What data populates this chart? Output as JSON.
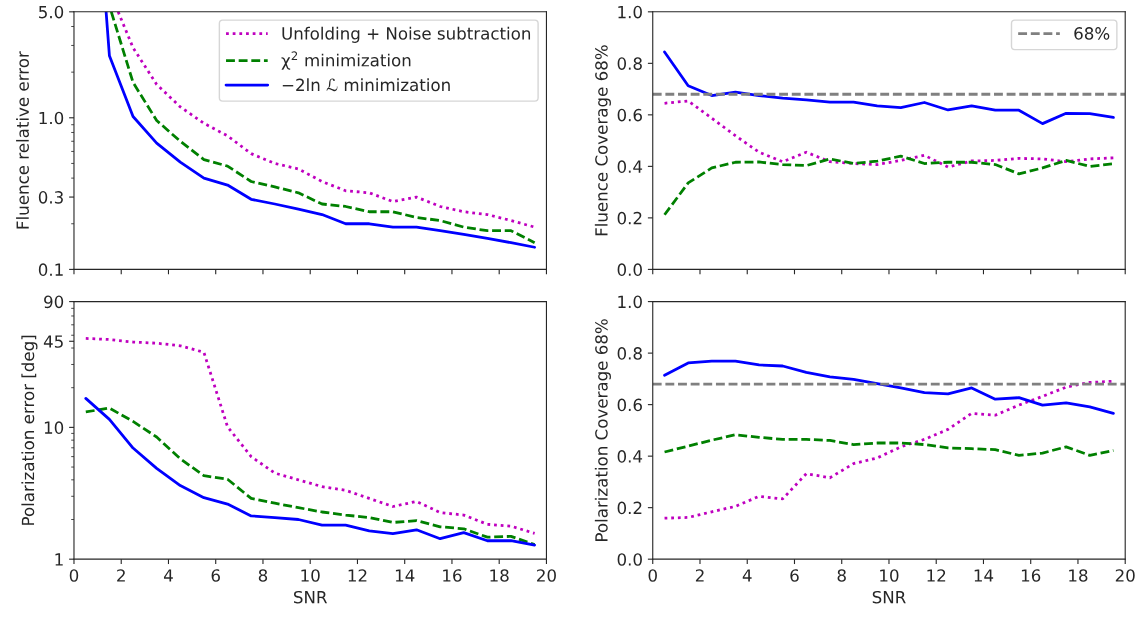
{
  "chart_data": [
    {
      "type": "line",
      "ylabel": "Fluence relative error",
      "log": "y",
      "ylim": [
        0.1,
        5.0
      ],
      "yticks": [
        0.1,
        0.3,
        {
          "value": 1,
          "label": "1.0"
        },
        {
          "value": 5,
          "label": "5.0"
        }
      ],
      "xlim": [
        0,
        20
      ],
      "xticks": [
        0,
        2,
        4,
        6,
        8,
        10,
        12,
        14,
        16,
        18,
        20
      ],
      "tick_labels": "y",
      "grid": false,
      "legend": "top right",
      "series": [
        {
          "name": "Unfolding + Noise subtraction",
          "color": "#bf00bf",
          "line_style": "dotted",
          "x": [
            1.87,
            2.5,
            3.5,
            4.5,
            5.5,
            6.5,
            7.5,
            8.5,
            9.5,
            10.5,
            11.5,
            12.5,
            13.5,
            14.5,
            15.5,
            16.5,
            17.5,
            18.5,
            19.5
          ],
          "values": [
            5.0,
            2.9,
            1.66,
            1.18,
            0.92,
            0.76,
            0.58,
            0.5,
            0.46,
            0.38,
            0.33,
            0.32,
            0.28,
            0.3,
            0.26,
            0.24,
            0.23,
            0.21,
            0.19
          ]
        },
        {
          "name": "χ$^{2}$ minimization",
          "color": "#008000",
          "line_style": "dashed",
          "x": [
            1.58,
            2.5,
            3.5,
            4.5,
            5.5,
            6.5,
            7.5,
            8.5,
            9.5,
            10.5,
            11.5,
            12.5,
            13.5,
            14.5,
            15.5,
            16.5,
            17.5,
            18.5,
            19.5
          ],
          "values": [
            5.0,
            1.71,
            0.96,
            0.7,
            0.53,
            0.48,
            0.38,
            0.35,
            0.32,
            0.27,
            0.26,
            0.24,
            0.24,
            0.22,
            0.21,
            0.19,
            0.18,
            0.18,
            0.15
          ]
        },
        {
          "name": "−2ln ℒ minimization",
          "color": "#0000ff",
          "line_style": "solid",
          "x": [
            1.36,
            1.5,
            2.5,
            3.5,
            4.5,
            5.5,
            6.5,
            7.5,
            8.5,
            9.5,
            10.5,
            11.5,
            12.5,
            13.5,
            14.5,
            15.5,
            16.5,
            17.5,
            18.5,
            19.5
          ],
          "values": [
            5.0,
            2.57,
            1.02,
            0.68,
            0.51,
            0.4,
            0.36,
            0.29,
            0.27,
            0.25,
            0.23,
            0.2,
            0.2,
            0.19,
            0.19,
            0.18,
            0.17,
            0.16,
            0.15,
            0.14
          ]
        }
      ]
    },
    {
      "type": "line",
      "ylabel": "Fluence Coverage 68%",
      "ylim": [
        0.0,
        1.0
      ],
      "yticks": [
        {
          "value": 0,
          "label": "0.0"
        },
        0.2,
        0.4,
        0.6,
        0.8,
        {
          "value": 1,
          "label": "1.0"
        }
      ],
      "xlim": [
        0,
        20
      ],
      "xticks": [
        0,
        2,
        4,
        6,
        8,
        10,
        12,
        14,
        16,
        18,
        20
      ],
      "tick_labels": "y",
      "grid": false,
      "legend": "top right",
      "x": [
        0.5,
        1.5,
        2.5,
        3.5,
        4.5,
        5.5,
        6.5,
        7.5,
        8.5,
        9.5,
        10.5,
        11.5,
        12.5,
        13.5,
        14.5,
        15.5,
        16.5,
        17.5,
        18.5,
        19.5
      ],
      "ref_lines": [
        {
          "axis": "y",
          "value": 0.68,
          "label": "68%",
          "color": "#808080",
          "line_style": "dashed"
        }
      ],
      "series": [
        {
          "color": "#bf00bf",
          "line_style": "dotted",
          "values": [
            0.645,
            0.654,
            0.587,
            0.519,
            0.455,
            0.418,
            0.455,
            0.418,
            0.411,
            0.407,
            0.423,
            0.443,
            0.397,
            0.421,
            0.423,
            0.431,
            0.429,
            0.418,
            0.429,
            0.433
          ]
        },
        {
          "color": "#008000",
          "line_style": "dashed",
          "values": [
            0.212,
            0.336,
            0.394,
            0.416,
            0.417,
            0.407,
            0.403,
            0.429,
            0.411,
            0.42,
            0.44,
            0.411,
            0.416,
            0.416,
            0.407,
            0.371,
            0.394,
            0.423,
            0.4,
            0.41
          ]
        },
        {
          "color": "#0000ff",
          "line_style": "solid",
          "values": [
            0.844,
            0.713,
            0.675,
            0.688,
            0.675,
            0.665,
            0.658,
            0.649,
            0.649,
            0.635,
            0.628,
            0.648,
            0.619,
            0.635,
            0.618,
            0.618,
            0.566,
            0.606,
            0.605,
            0.59
          ]
        }
      ]
    },
    {
      "type": "line",
      "ylabel": "Polarization error [deg]",
      "xlabel": "SNR",
      "log": "y",
      "ylim": [
        1,
        90
      ],
      "yticks": [
        1,
        10,
        45,
        90
      ],
      "xlim": [
        0,
        20
      ],
      "xticks": [
        0,
        2,
        4,
        6,
        8,
        10,
        12,
        14,
        16,
        18,
        20
      ],
      "grid": false,
      "x": [
        0.5,
        1.5,
        2.5,
        3.5,
        4.5,
        5.5,
        6.5,
        7.5,
        8.5,
        9.5,
        10.5,
        11.5,
        12.5,
        13.5,
        14.5,
        15.5,
        16.5,
        17.5,
        18.5,
        19.5
      ],
      "series": [
        {
          "color": "#bf00bf",
          "line_style": "dotted",
          "values": [
            47.3,
            46.4,
            44.4,
            43.5,
            41.6,
            37.1,
            10.1,
            6.0,
            4.5,
            4.0,
            3.55,
            3.33,
            2.89,
            2.51,
            2.74,
            2.26,
            2.16,
            1.84,
            1.78,
            1.57
          ]
        },
        {
          "color": "#008000",
          "line_style": "dashed",
          "values": [
            13.1,
            14.0,
            11.1,
            8.45,
            5.78,
            4.3,
            4.04,
            2.89,
            2.66,
            2.46,
            2.28,
            2.16,
            2.07,
            1.9,
            1.96,
            1.76,
            1.7,
            1.47,
            1.49,
            1.29
          ]
        },
        {
          "color": "#0000ff",
          "line_style": "solid",
          "values": [
            16.6,
            11.5,
            6.97,
            4.89,
            3.62,
            2.93,
            2.62,
            2.13,
            2.07,
            2.0,
            1.81,
            1.81,
            1.64,
            1.56,
            1.67,
            1.43,
            1.59,
            1.38,
            1.38,
            1.28
          ]
        }
      ]
    },
    {
      "type": "line",
      "ylabel": "Polarization Coverage 68%",
      "xlabel": "SNR",
      "ylim": [
        0.0,
        1.0
      ],
      "yticks": [
        {
          "value": 0,
          "label": "0.0"
        },
        0.2,
        0.4,
        0.6,
        0.8,
        {
          "value": 1,
          "label": "1.0"
        }
      ],
      "xlim": [
        0,
        20
      ],
      "xticks": [
        0,
        2,
        4,
        6,
        8,
        10,
        12,
        14,
        16,
        18,
        20
      ],
      "grid": false,
      "x": [
        0.5,
        1.5,
        2.5,
        3.5,
        4.5,
        5.5,
        6.5,
        7.5,
        8.5,
        9.5,
        10.5,
        11.5,
        12.5,
        13.5,
        14.5,
        15.5,
        16.5,
        17.5,
        18.5,
        19.5
      ],
      "ref_lines": [
        {
          "axis": "y",
          "value": 0.68,
          "color": "#808080",
          "line_style": "dashed"
        }
      ],
      "series": [
        {
          "color": "#bf00bf",
          "line_style": "dotted",
          "values": [
            0.159,
            0.162,
            0.184,
            0.205,
            0.244,
            0.234,
            0.332,
            0.316,
            0.371,
            0.393,
            0.436,
            0.465,
            0.504,
            0.566,
            0.559,
            0.598,
            0.632,
            0.668,
            0.686,
            0.691
          ]
        },
        {
          "color": "#008000",
          "line_style": "dashed",
          "values": [
            0.416,
            0.439,
            0.462,
            0.483,
            0.473,
            0.465,
            0.465,
            0.461,
            0.445,
            0.451,
            0.451,
            0.445,
            0.432,
            0.429,
            0.425,
            0.403,
            0.412,
            0.436,
            0.403,
            0.422
          ]
        },
        {
          "color": "#0000ff",
          "line_style": "solid",
          "values": [
            0.714,
            0.762,
            0.769,
            0.769,
            0.754,
            0.75,
            0.725,
            0.708,
            0.698,
            0.682,
            0.665,
            0.647,
            0.642,
            0.665,
            0.621,
            0.627,
            0.598,
            0.607,
            0.591,
            0.566
          ]
        }
      ]
    }
  ]
}
